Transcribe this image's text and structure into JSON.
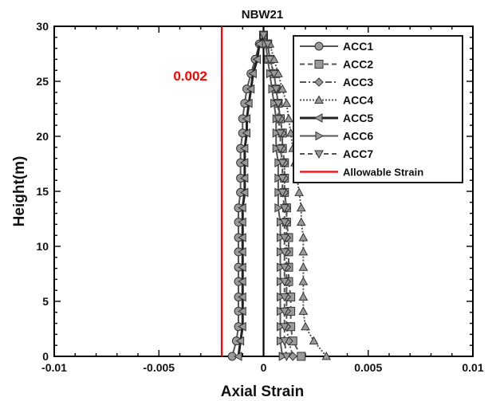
{
  "chart_data": {
    "type": "line",
    "title": "NBW21",
    "xlabel": "Axial Strain",
    "ylabel": "Height(m)",
    "xlim": [
      -0.01,
      0.01
    ],
    "ylim": [
      0,
      30
    ],
    "xticks": [
      -0.01,
      -0.005,
      0,
      0.005,
      0.01
    ],
    "xtick_labels": [
      "-0.01",
      "-0.005",
      "0",
      "0.005",
      "0.01"
    ],
    "yticks": [
      0,
      5,
      10,
      15,
      20,
      25,
      30
    ],
    "ytick_labels": [
      "0",
      "5",
      "10",
      "15",
      "20",
      "25",
      "30"
    ],
    "grid": false,
    "legend_position": "top-right",
    "annotations": [
      {
        "text": "0.002",
        "x": -0.0035,
        "y": 25.5,
        "color": "#ff0000"
      }
    ],
    "y": [
      0,
      1.4,
      2.7,
      4.1,
      5.4,
      6.8,
      8.1,
      9.5,
      10.8,
      12.2,
      13.5,
      14.9,
      16.2,
      17.6,
      18.9,
      20.3,
      21.6,
      23.0,
      24.3,
      25.7,
      27.0,
      28.4,
      29.2
    ],
    "series": [
      {
        "name": "ACC1",
        "marker": "circle",
        "dash": "none",
        "color": "#555555",
        "x": [
          -0.0015,
          -0.0013,
          -0.0012,
          -0.0012,
          -0.0012,
          -0.0012,
          -0.0012,
          -0.0012,
          -0.0012,
          -0.0012,
          -0.0012,
          -0.0011,
          -0.0011,
          -0.0011,
          -0.0011,
          -0.001,
          -0.001,
          -0.0009,
          -0.0008,
          -0.0006,
          -0.0004,
          -0.0002,
          0.0
        ]
      },
      {
        "name": "ACC2",
        "marker": "square",
        "dash": "6,4",
        "color": "#555555",
        "x": [
          0.0018,
          0.0014,
          0.0013,
          0.0013,
          0.0013,
          0.0012,
          0.0012,
          0.0012,
          0.0012,
          0.0011,
          0.0011,
          0.001,
          0.001,
          0.001,
          0.0009,
          0.0009,
          0.0008,
          0.0007,
          0.0006,
          0.0005,
          0.0003,
          0.0002,
          0.0
        ]
      },
      {
        "name": "ACC3",
        "marker": "diamond",
        "dash": "8,3,2,3",
        "color": "#555555",
        "x": [
          0.0014,
          0.0012,
          0.0011,
          0.0011,
          0.0011,
          0.0011,
          0.0011,
          0.0011,
          0.0011,
          0.0011,
          0.0011,
          0.001,
          0.001,
          0.001,
          0.0009,
          0.0009,
          0.0008,
          0.0007,
          0.0006,
          0.0005,
          0.0003,
          0.0002,
          0.0
        ]
      },
      {
        "name": "ACC4",
        "marker": "triangle-up",
        "dash": "2,2",
        "color": "#555555",
        "x": [
          0.003,
          0.0024,
          0.002,
          0.0019,
          0.0019,
          0.0019,
          0.0019,
          0.0019,
          0.0019,
          0.0018,
          0.0018,
          0.0017,
          0.0016,
          0.0015,
          0.0014,
          0.0013,
          0.0012,
          0.0011,
          0.0009,
          0.0007,
          0.0005,
          0.0003,
          0.0
        ]
      },
      {
        "name": "ACC5",
        "marker": "triangle-left",
        "dash": "none",
        "color": "#222222",
        "x": [
          -0.0012,
          -0.0011,
          -0.001,
          -0.001,
          -0.001,
          -0.001,
          -0.001,
          -0.001,
          -0.001,
          -0.001,
          -0.001,
          -0.0009,
          -0.0009,
          -0.0009,
          -0.0009,
          -0.0008,
          -0.0008,
          -0.0007,
          -0.0006,
          -0.0005,
          -0.0003,
          -0.0002,
          0.0
        ]
      },
      {
        "name": "ACC6",
        "marker": "triangle-right",
        "dash": "none",
        "color": "#555555",
        "x": [
          0.0009,
          0.0008,
          0.0008,
          0.0008,
          0.0008,
          0.0008,
          0.0008,
          0.0008,
          0.0008,
          0.0008,
          0.0007,
          0.0007,
          0.0007,
          0.0007,
          0.0006,
          0.0006,
          0.0006,
          0.0005,
          0.0004,
          0.0003,
          0.0002,
          0.0001,
          0.0
        ]
      },
      {
        "name": "ACC7",
        "marker": "triangle-down",
        "dash": "6,4",
        "color": "#555555",
        "x": [
          0.0011,
          0.001,
          0.001,
          0.001,
          0.001,
          0.001,
          0.001,
          0.001,
          0.001,
          0.001,
          0.001,
          0.0009,
          0.0009,
          0.0009,
          0.0008,
          0.0008,
          0.0007,
          0.0007,
          0.0006,
          0.0005,
          0.0003,
          0.0002,
          0.0
        ]
      }
    ],
    "reference_lines": [
      {
        "name": "Allowable Strain",
        "x": -0.002,
        "color": "#ff0000"
      },
      {
        "name": "",
        "x": 0,
        "color": "#000000"
      }
    ]
  }
}
